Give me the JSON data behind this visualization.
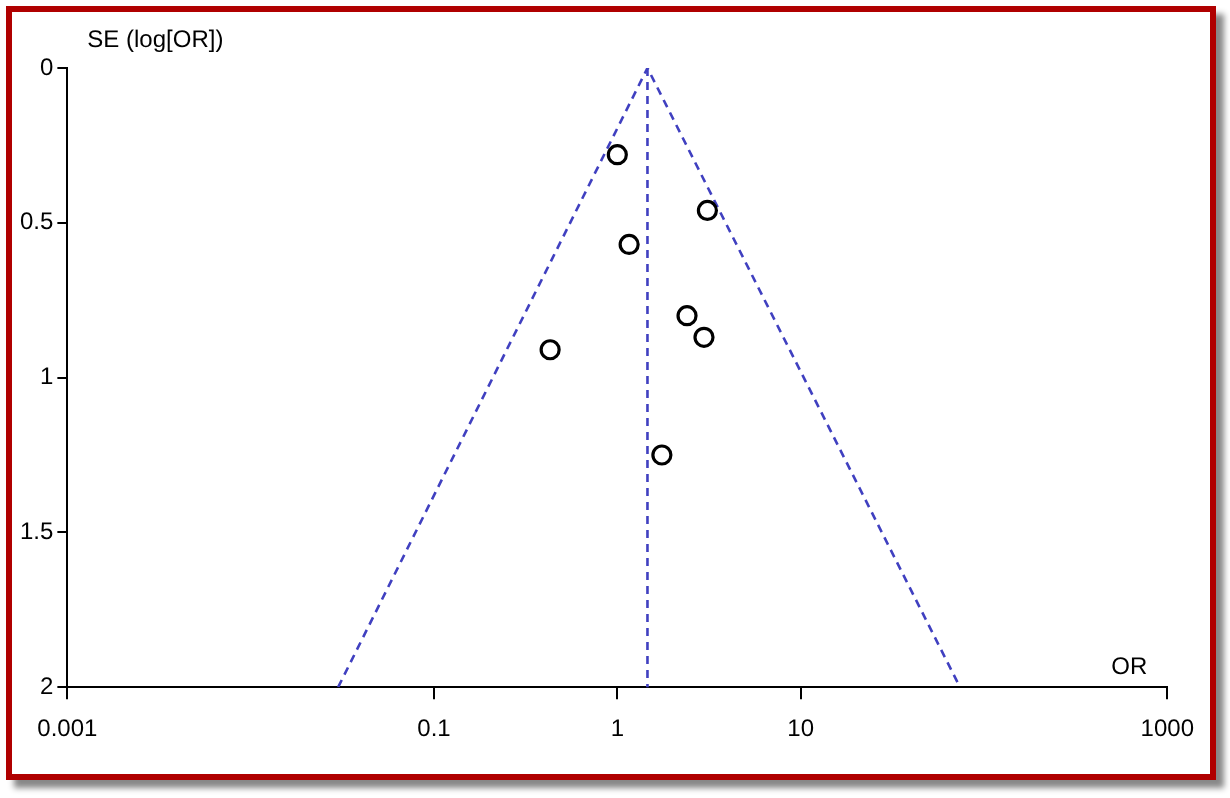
{
  "chart_data": {
    "type": "scatter",
    "xlabel": "OR",
    "ylabel": "SE (log[OR])",
    "log": "x",
    "grid": false,
    "legend": false,
    "xlim": [
      0.001,
      1000
    ],
    "xticks": [
      0.001,
      0.1,
      1,
      10,
      1000
    ],
    "ylim": [
      2,
      0
    ],
    "yticks": [
      0,
      0.5,
      1,
      1.5,
      2
    ],
    "series": [
      {
        "color": "#000000",
        "marker": "circle",
        "x": [
          1.0,
          3.1,
          1.16,
          2.4,
          2.97,
          0.43,
          1.75
        ],
        "values": [
          0.28,
          0.46,
          0.57,
          0.8,
          0.87,
          0.91,
          1.25
        ]
      },
      {
        "type": "line",
        "color": "#4040c0",
        "marker": "none",
        "line_style": "dashed",
        "x": [
          0.03,
          1.46,
          74
        ],
        "values": [
          2,
          0,
          2
        ]
      }
    ],
    "ref_lines": [
      {
        "axis": "x",
        "value": 1.46,
        "color": "#4040c0",
        "line_style": "dashed"
      }
    ]
  }
}
